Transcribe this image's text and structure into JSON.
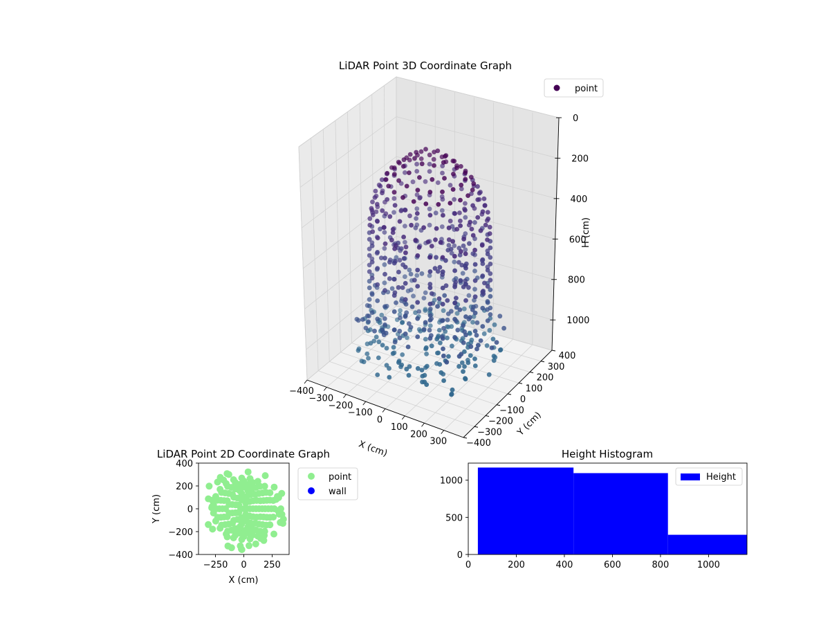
{
  "chart_data": [
    {
      "type": "scatter3d",
      "title": "LiDAR Point 3D Coordinate Graph",
      "xlabel": "X (cm)",
      "ylabel": "Y (cm)",
      "zlabel": "H (cm)",
      "xlim": [
        -400,
        400
      ],
      "ylim": [
        -400,
        400
      ],
      "zlim": [
        0,
        1150
      ],
      "z_inverted": true,
      "xticks": [
        -400,
        -300,
        -200,
        -100,
        0,
        100,
        200,
        300
      ],
      "yticks": [
        -400,
        -300,
        -200,
        -100,
        0,
        100,
        200,
        300,
        400
      ],
      "zticks": [
        0,
        200,
        400,
        600,
        800,
        1000
      ],
      "legend": {
        "position": "top-right",
        "entries": [
          {
            "label": "point",
            "color": "#440154"
          }
        ]
      },
      "point_cloud": {
        "description_shape": "dome",
        "dome_radius": 270,
        "dome_height": 830,
        "rings": [
          {
            "h": 90,
            "r": 70
          },
          {
            "h": 130,
            "r": 120
          },
          {
            "h": 170,
            "r": 160
          },
          {
            "h": 210,
            "r": 195
          },
          {
            "h": 250,
            "r": 220
          },
          {
            "h": 300,
            "r": 245
          },
          {
            "h": 360,
            "r": 260
          },
          {
            "h": 430,
            "r": 268
          },
          {
            "h": 500,
            "r": 270
          },
          {
            "h": 580,
            "r": 270
          },
          {
            "h": 660,
            "r": 270
          },
          {
            "h": 740,
            "r": 270
          },
          {
            "h": 830,
            "r": 270
          }
        ],
        "floor_h": 850,
        "floor_r": 330,
        "colors": [
          "#440154",
          "#472a7a",
          "#433e85",
          "#3b528b",
          "#31688e"
        ]
      }
    },
    {
      "type": "scatter",
      "title": "LiDAR Point 2D Coordinate Graph",
      "xlabel": "X (cm)",
      "ylabel": "Y (cm)",
      "xlim": [
        -400,
        400
      ],
      "ylim": [
        -400,
        400
      ],
      "xticks": [
        -250,
        0,
        250
      ],
      "yticks": [
        -400,
        -200,
        0,
        200,
        400
      ],
      "legend": {
        "position": "right",
        "entries": [
          {
            "label": "point",
            "color": "#90ee90"
          },
          {
            "label": "wall",
            "color": "#0000ff"
          }
        ]
      },
      "series": [
        {
          "name": "point",
          "color": "#90ee90",
          "radius": 270
        },
        {
          "name": "wall",
          "color": "#0000ff",
          "count": 0
        }
      ]
    },
    {
      "type": "bar",
      "title": "Height Histogram",
      "xlabel": "",
      "ylabel": "",
      "xlim": [
        0,
        1160
      ],
      "ylim": [
        0,
        1230
      ],
      "xticks": [
        0,
        200,
        400,
        600,
        800,
        1000
      ],
      "yticks": [
        0,
        500,
        1000
      ],
      "color": "#0000ff",
      "legend": {
        "position": "top-right",
        "entries": [
          {
            "label": "Height",
            "color": "#0000ff"
          }
        ]
      },
      "bins": [
        {
          "from": 40,
          "to": 438,
          "count": 1170
        },
        {
          "from": 438,
          "to": 831,
          "count": 1095
        },
        {
          "from": 831,
          "to": 1160,
          "count": 265
        }
      ]
    }
  ]
}
